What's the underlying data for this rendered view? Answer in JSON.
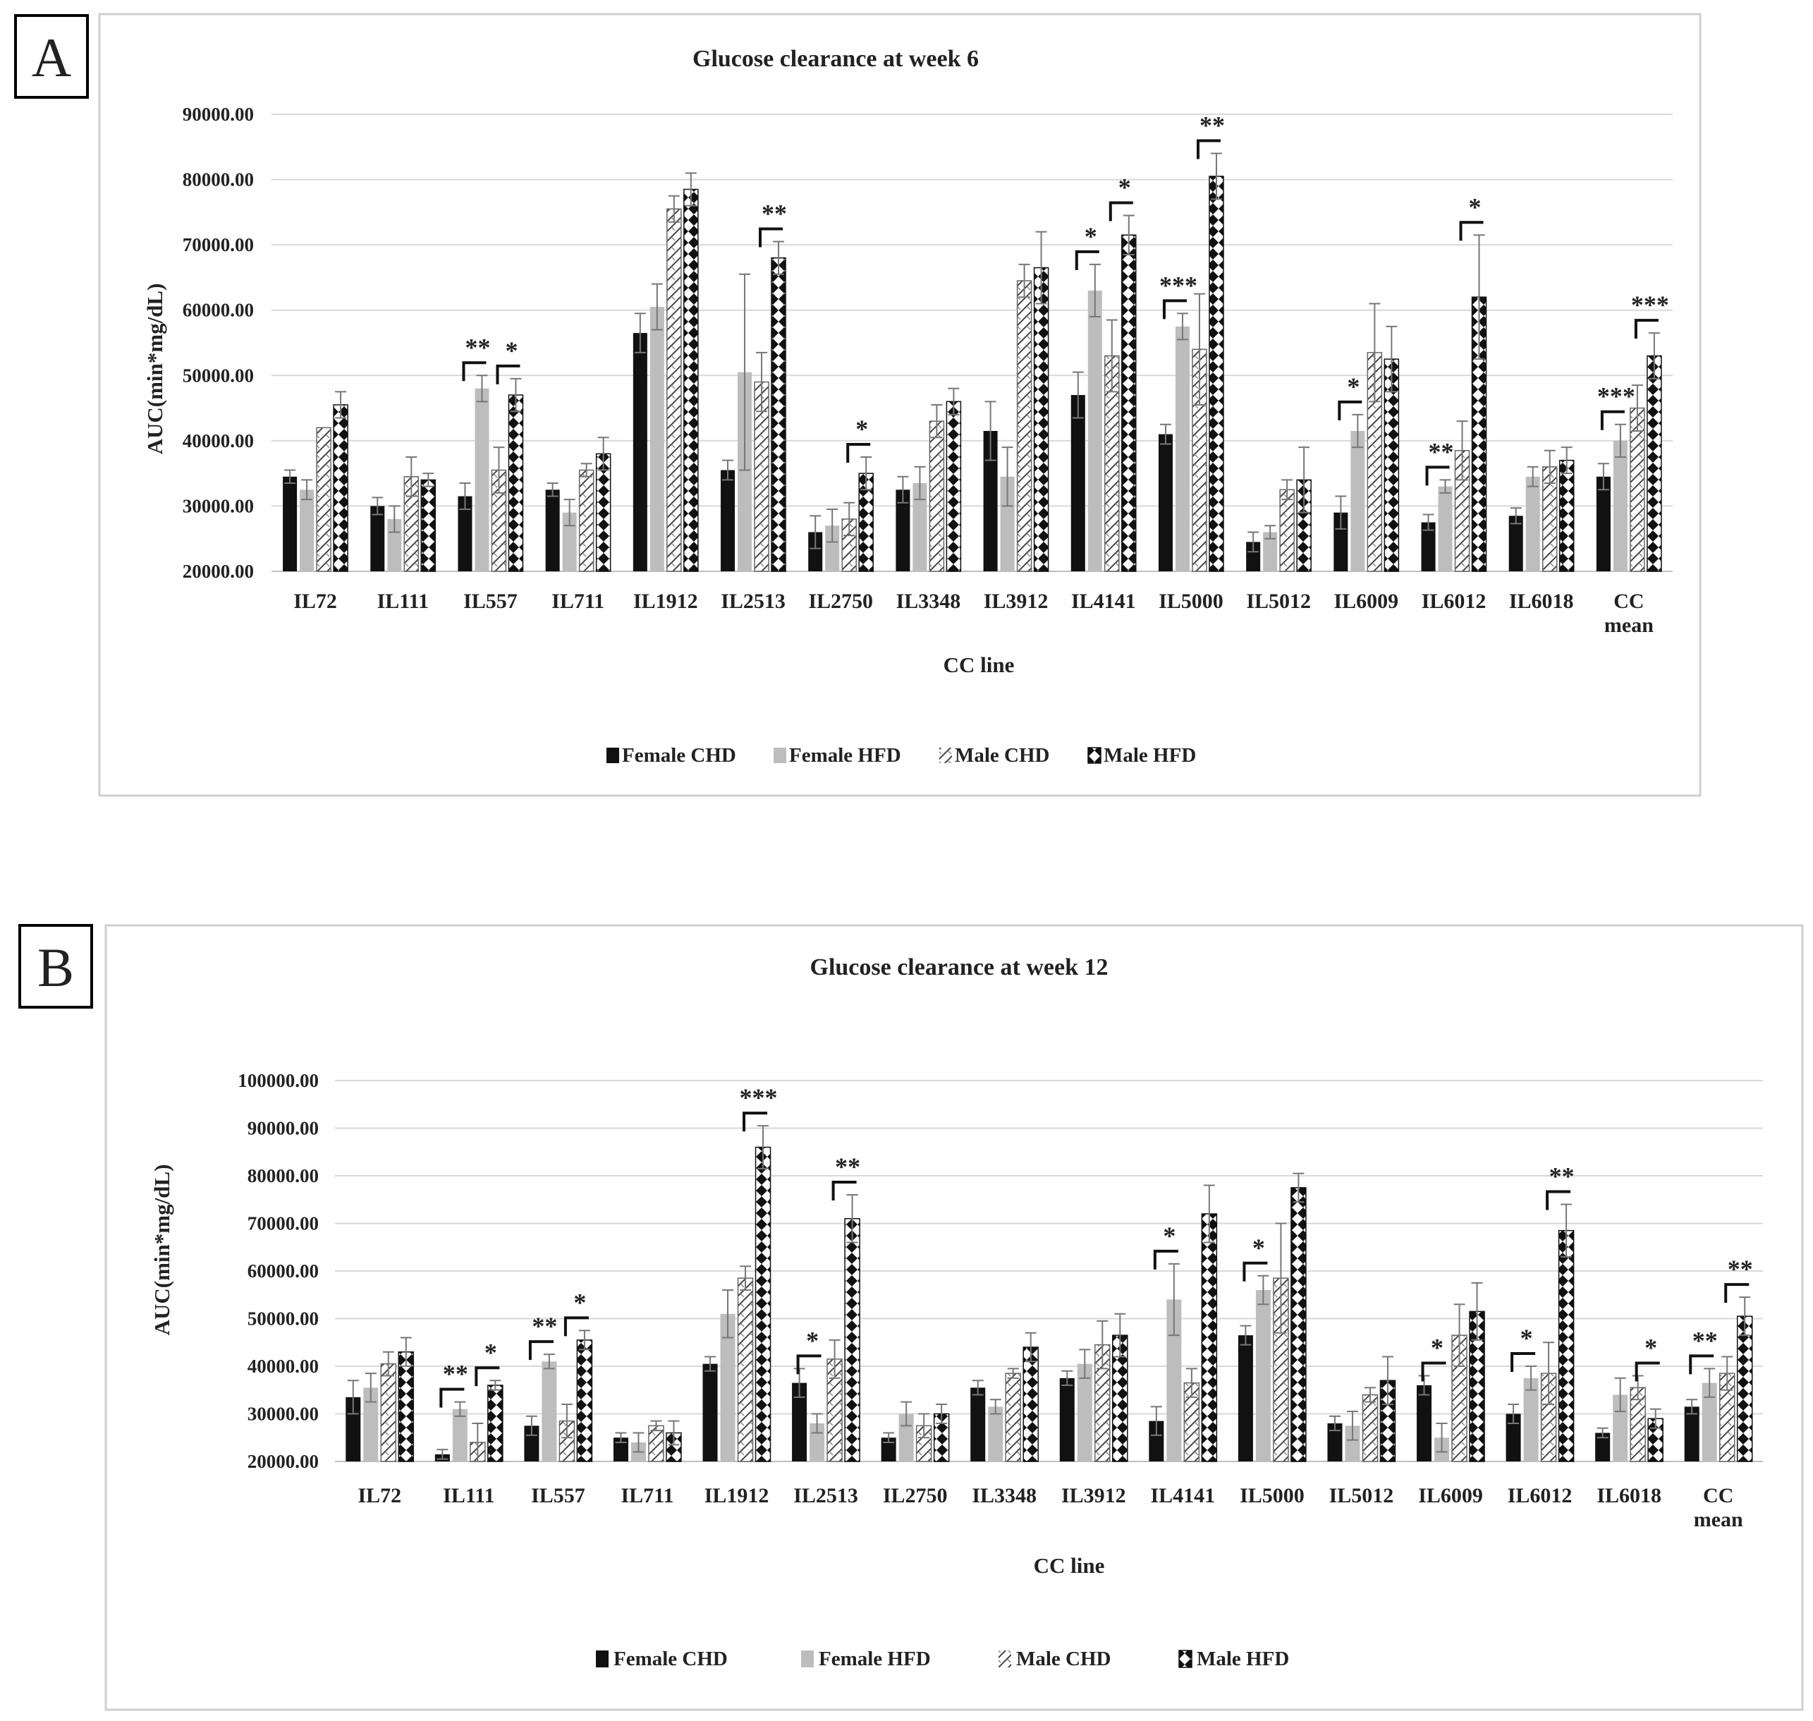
{
  "colors": {
    "female_chd": "#111111",
    "female_hfd": "#bdbdbd",
    "male_chd_stroke": "#444444",
    "male_hfd_fill": "#111111",
    "grid": "#d9d9d9",
    "frame": "#cfcfcf"
  },
  "legend": [
    "Female CHD",
    "Female HFD",
    "Male CHD",
    "Male HFD"
  ],
  "chart_data": [
    {
      "panel_label": "A",
      "type": "bar",
      "title": "Glucose clearance at week 6",
      "xlabel": "CC line",
      "ylabel": "AUC(min*mg/dL)",
      "ylim": [
        20000,
        90000
      ],
      "yticks": [
        "20000.00",
        "30000.00",
        "40000.00",
        "50000.00",
        "60000.00",
        "70000.00",
        "80000.00",
        "90000.00"
      ],
      "categories": [
        "IL72",
        "IL111",
        "IL557",
        "IL711",
        "IL1912",
        "IL2513",
        "IL2750",
        "IL3348",
        "IL3912",
        "IL4141",
        "IL5000",
        "IL5012",
        "IL6009",
        "IL6012",
        "IL6018",
        "CC\nmean"
      ],
      "series": [
        {
          "name": "Female CHD",
          "values": [
            34500,
            30000,
            31500,
            32500,
            56500,
            35500,
            26000,
            32500,
            41500,
            47000,
            41000,
            24500,
            29000,
            27500,
            28500,
            34500
          ],
          "errors": [
            1000,
            1300,
            2000,
            1000,
            3000,
            1500,
            2500,
            2000,
            4500,
            3500,
            1500,
            1500,
            2500,
            1200,
            1200,
            2000
          ]
        },
        {
          "name": "Female HFD",
          "values": [
            32500,
            28000,
            48000,
            29000,
            60500,
            50500,
            27000,
            33500,
            34500,
            63000,
            57500,
            26000,
            41500,
            33000,
            34500,
            40000
          ],
          "errors": [
            1500,
            2000,
            2000,
            2000,
            3500,
            15000,
            2500,
            2500,
            4500,
            4000,
            2000,
            1000,
            2500,
            1000,
            1500,
            2500
          ]
        },
        {
          "name": "Male CHD",
          "values": [
            42000,
            34500,
            35500,
            35500,
            75500,
            49000,
            28000,
            43000,
            64500,
            53000,
            54000,
            32500,
            53500,
            38500,
            36000,
            45000
          ],
          "errors": [
            0,
            3000,
            3500,
            1000,
            2000,
            4500,
            2500,
            2500,
            2500,
            5500,
            8500,
            1500,
            7500,
            4500,
            2500,
            3500
          ]
        },
        {
          "name": "Male HFD",
          "values": [
            45500,
            34000,
            47000,
            38000,
            78500,
            68000,
            35000,
            46000,
            66500,
            71500,
            80500,
            34000,
            52500,
            62000,
            37000,
            53000
          ],
          "errors": [
            2000,
            1000,
            2500,
            2500,
            2500,
            2500,
            2500,
            2000,
            5500,
            3000,
            3500,
            5000,
            5000,
            9500,
            2000,
            3500
          ]
        }
      ],
      "significance": [
        {
          "label": "**",
          "category": "IL557",
          "between": [
            "Female CHD",
            "Female HFD"
          ]
        },
        {
          "label": "*",
          "category": "IL557",
          "between": [
            "Male CHD",
            "Male HFD"
          ]
        },
        {
          "label": "**",
          "category": "IL2513",
          "between": [
            "Male CHD",
            "Male HFD"
          ]
        },
        {
          "label": "*",
          "category": "IL2750",
          "between": [
            "Male CHD",
            "Male HFD"
          ]
        },
        {
          "label": "*",
          "category": "IL4141",
          "between": [
            "Female CHD",
            "Female HFD"
          ]
        },
        {
          "label": "*",
          "category": "IL4141",
          "between": [
            "Male CHD",
            "Male HFD"
          ]
        },
        {
          "label": "***",
          "category": "IL5000",
          "between": [
            "Female CHD",
            "Female HFD"
          ]
        },
        {
          "label": "**",
          "category": "IL5000",
          "between": [
            "Male CHD",
            "Male HFD"
          ]
        },
        {
          "label": "*",
          "category": "IL6009",
          "between": [
            "Female CHD",
            "Female HFD"
          ]
        },
        {
          "label": "**",
          "category": "IL6012",
          "between": [
            "Female CHD",
            "Female HFD"
          ]
        },
        {
          "label": "*",
          "category": "IL6012",
          "between": [
            "Male CHD",
            "Male HFD"
          ]
        },
        {
          "label": "***",
          "category": "CC\nmean",
          "between": [
            "Female CHD",
            "Female HFD"
          ]
        },
        {
          "label": "***",
          "category": "CC\nmean",
          "between": [
            "Male CHD",
            "Male HFD"
          ]
        }
      ]
    },
    {
      "panel_label": "B",
      "type": "bar",
      "title": "Glucose clearance at week 12",
      "xlabel": "CC line",
      "ylabel": "AUC(min*mg/dL)",
      "ylim": [
        20000,
        100000
      ],
      "yticks": [
        "20000.00",
        "30000.00",
        "40000.00",
        "50000.00",
        "60000.00",
        "70000.00",
        "80000.00",
        "90000.00",
        "100000.00"
      ],
      "categories": [
        "IL72",
        "IL111",
        "IL557",
        "IL711",
        "IL1912",
        "IL2513",
        "IL2750",
        "IL3348",
        "IL3912",
        "IL4141",
        "IL5000",
        "IL5012",
        "IL6009",
        "IL6012",
        "IL6018",
        "CC\nmean"
      ],
      "series": [
        {
          "name": "Female CHD",
          "values": [
            33500,
            21500,
            27500,
            25000,
            40500,
            36500,
            25000,
            35500,
            37500,
            28500,
            46500,
            28000,
            36000,
            30000,
            26000,
            31500
          ],
          "errors": [
            3500,
            1000,
            2000,
            1000,
            1500,
            3000,
            1000,
            1500,
            1500,
            3000,
            2000,
            1500,
            2000,
            2000,
            1000,
            1500
          ]
        },
        {
          "name": "Female HFD",
          "values": [
            35500,
            31000,
            41000,
            24000,
            51000,
            28000,
            30000,
            31500,
            40500,
            54000,
            56000,
            27500,
            25000,
            37500,
            34000,
            36500
          ],
          "errors": [
            3000,
            1500,
            1500,
            2000,
            5000,
            2000,
            2500,
            1500,
            3000,
            7500,
            3000,
            3000,
            3000,
            2500,
            3500,
            3000
          ]
        },
        {
          "name": "Male CHD",
          "values": [
            40500,
            24000,
            28500,
            27500,
            58500,
            41500,
            27500,
            38500,
            44500,
            36500,
            58500,
            34000,
            46500,
            38500,
            35500,
            38500
          ],
          "errors": [
            2500,
            4000,
            3500,
            1000,
            2500,
            4000,
            2500,
            1000,
            5000,
            3000,
            11500,
            1500,
            6500,
            6500,
            2500,
            3500
          ]
        },
        {
          "name": "Male HFD",
          "values": [
            43000,
            36000,
            45500,
            26000,
            86000,
            71000,
            30000,
            44000,
            46500,
            72000,
            77500,
            37000,
            51500,
            68500,
            29000,
            50500
          ],
          "errors": [
            3000,
            1000,
            2000,
            2500,
            4500,
            5000,
            2000,
            3000,
            4500,
            6000,
            3000,
            5000,
            6000,
            5500,
            2000,
            4000
          ]
        }
      ],
      "significance": [
        {
          "label": "**",
          "category": "IL111",
          "between": [
            "Female CHD",
            "Female HFD"
          ]
        },
        {
          "label": "*",
          "category": "IL111",
          "between": [
            "Male CHD",
            "Male HFD"
          ]
        },
        {
          "label": "**",
          "category": "IL557",
          "between": [
            "Female CHD",
            "Female HFD"
          ]
        },
        {
          "label": "*",
          "category": "IL557",
          "between": [
            "Male CHD",
            "Male HFD"
          ]
        },
        {
          "label": "***",
          "category": "IL1912",
          "between": [
            "Male CHD",
            "Male HFD"
          ]
        },
        {
          "label": "*",
          "category": "IL2513",
          "between": [
            "Female CHD",
            "Female HFD"
          ]
        },
        {
          "label": "**",
          "category": "IL2513",
          "between": [
            "Male CHD",
            "Male HFD"
          ]
        },
        {
          "label": "*",
          "category": "IL4141",
          "between": [
            "Female CHD",
            "Female HFD"
          ]
        },
        {
          "label": "*",
          "category": "IL5000",
          "between": [
            "Female CHD",
            "Female HFD"
          ]
        },
        {
          "label": "*",
          "category": "IL6009",
          "between": [
            "Female CHD",
            "Female HFD"
          ]
        },
        {
          "label": "*",
          "category": "IL6012",
          "between": [
            "Female CHD",
            "Female HFD"
          ]
        },
        {
          "label": "**",
          "category": "IL6012",
          "between": [
            "Male CHD",
            "Male HFD"
          ]
        },
        {
          "label": "*",
          "category": "IL6018",
          "between": [
            "Male CHD",
            "Male HFD"
          ]
        },
        {
          "label": "**",
          "category": "CC\nmean",
          "between": [
            "Female CHD",
            "Female HFD"
          ]
        },
        {
          "label": "**",
          "category": "CC\nmean",
          "between": [
            "Male CHD",
            "Male HFD"
          ]
        }
      ]
    }
  ]
}
